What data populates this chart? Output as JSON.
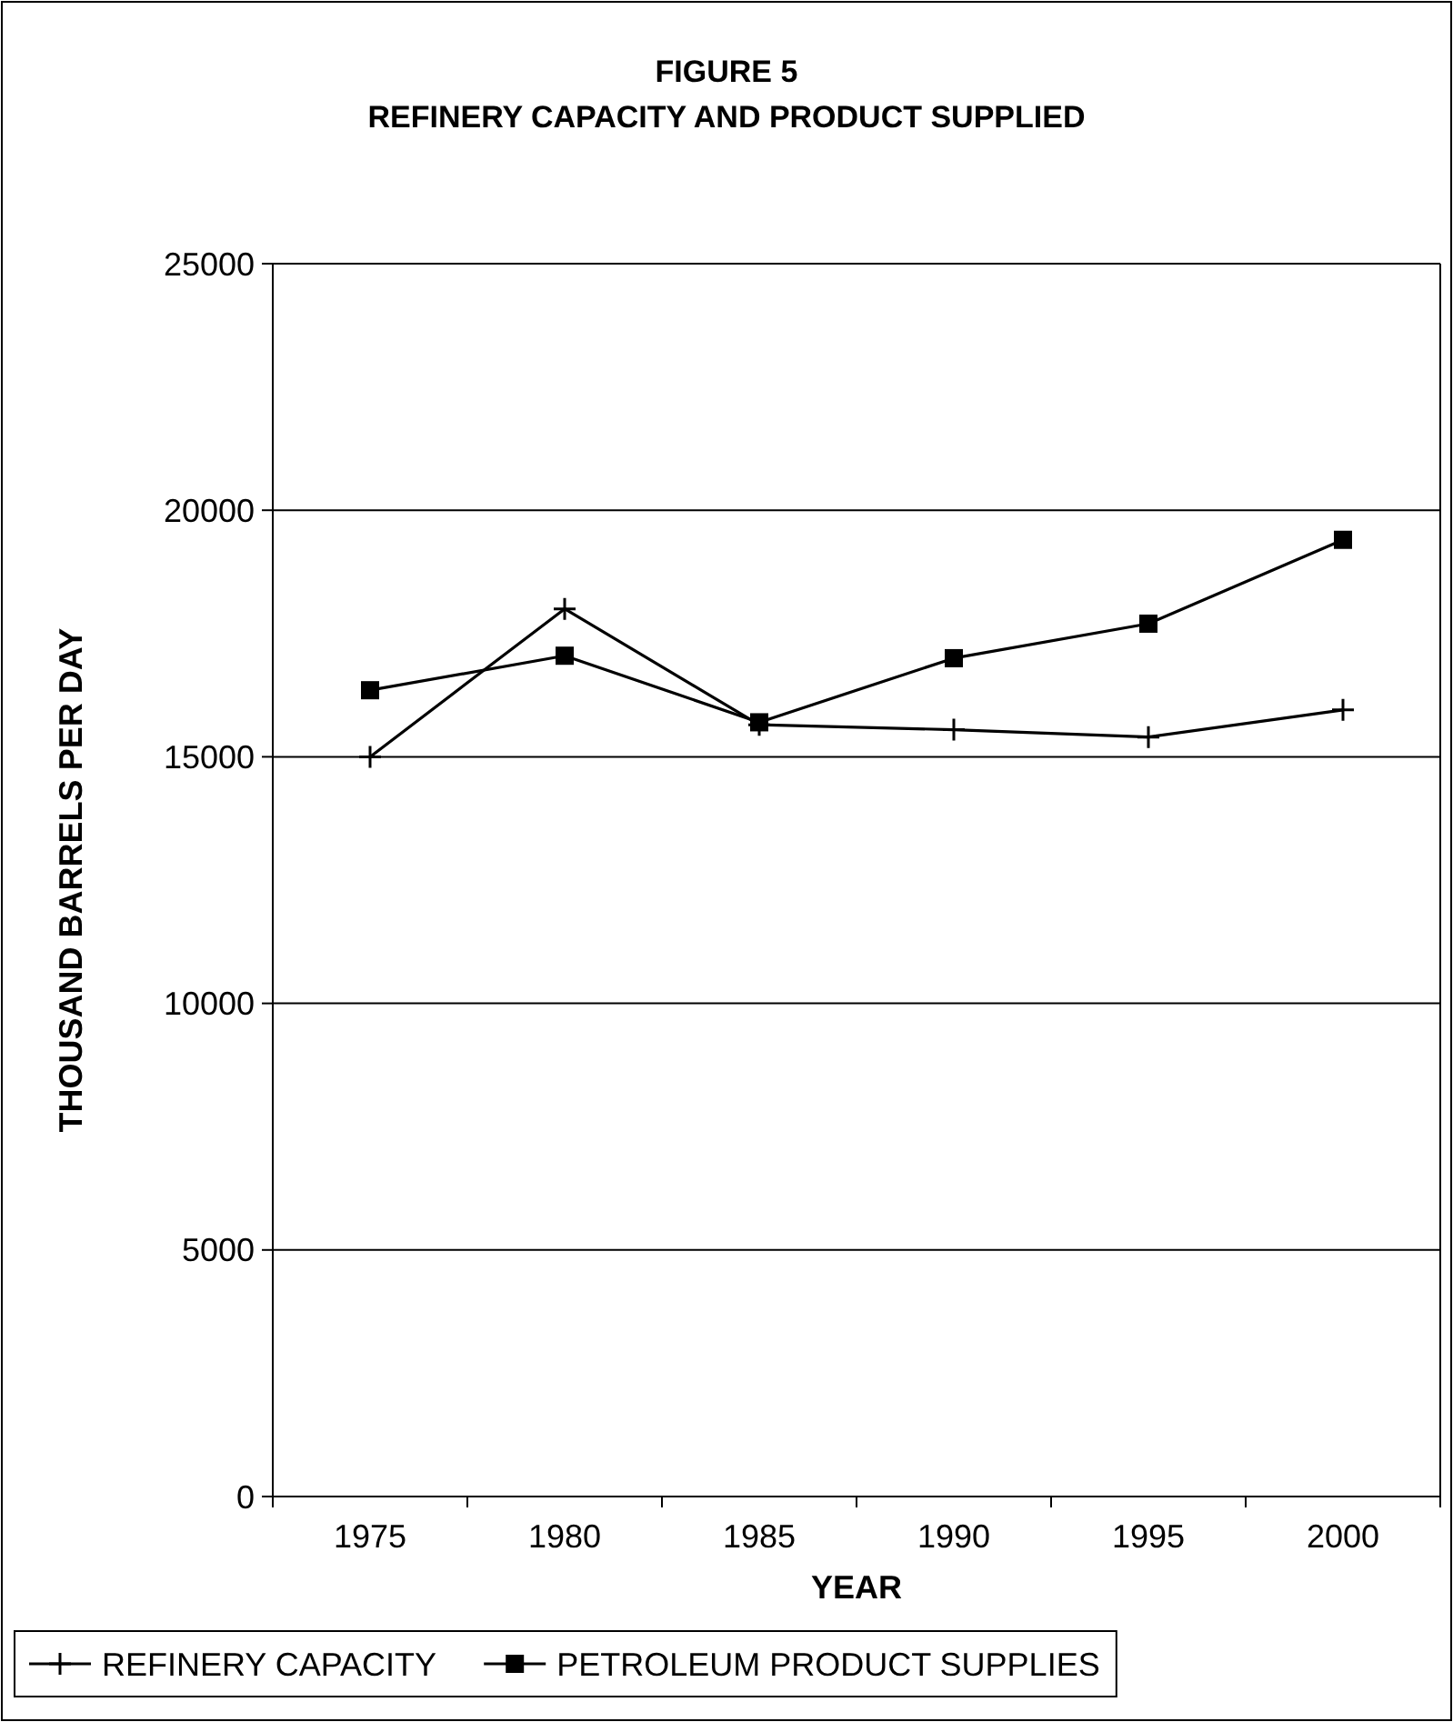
{
  "chart_data": {
    "type": "line",
    "title": "FIGURE 5",
    "subtitle": "REFINERY CAPACITY AND PRODUCT SUPPLIED",
    "xlabel": "YEAR",
    "ylabel": "THOUSAND BARRELS PER DAY",
    "categories": [
      "1975",
      "1980",
      "1985",
      "1990",
      "1995",
      "2000"
    ],
    "series": [
      {
        "name": "REFINERY CAPACITY",
        "color": "#000000",
        "marker": "cross",
        "values": [
          15000,
          18000,
          15650,
          15550,
          15400,
          15950
        ]
      },
      {
        "name": "PETROLEUM PRODUCT SUPPLIES",
        "color": "#000000",
        "marker": "square",
        "values": [
          16350,
          17050,
          15700,
          17000,
          17700,
          19400
        ]
      }
    ],
    "ylim": [
      0,
      25000
    ],
    "yticks": [
      0,
      5000,
      10000,
      15000,
      20000,
      25000
    ],
    "grid": "y",
    "legend": "bottom",
    "line_style": "solid"
  }
}
